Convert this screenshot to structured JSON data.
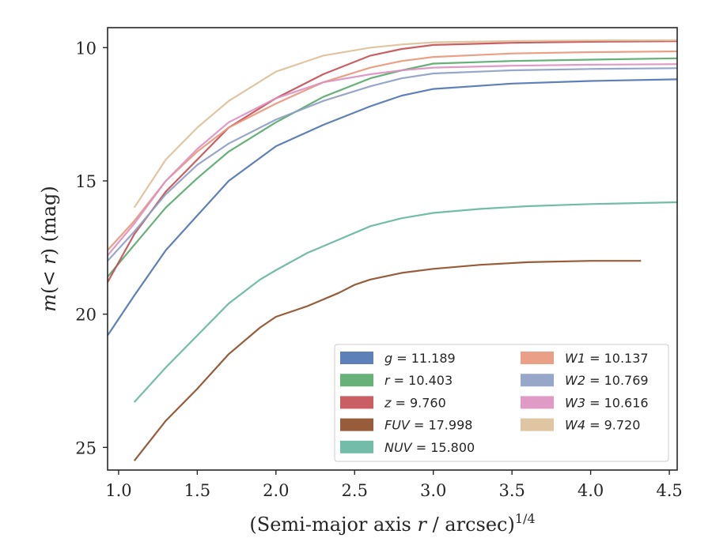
{
  "chart_data": {
    "type": "line",
    "title": "",
    "xlabel": "(Semi-major axis r / arcsec)",
    "xlabel_parts": {
      "pre": "(Semi-major axis ",
      "var": "r",
      "post": " / arcsec)",
      "exp": "1/4"
    },
    "ylabel": "m(< r) (mag)",
    "ylabel_parts": {
      "var": "m",
      "open": "(",
      "lt": "< ",
      "r": "r",
      "close": ") (mag)"
    },
    "xlim": [
      0.93,
      4.55
    ],
    "ylim": [
      25.85,
      9.25
    ],
    "y_inverted": true,
    "x_ticks": [
      "1.0",
      "1.5",
      "2.0",
      "2.5",
      "3.0",
      "3.5",
      "4.0",
      "4.5"
    ],
    "y_ticks": [
      "10",
      "15",
      "20",
      "25"
    ],
    "legend_position": "lower-right",
    "series": [
      {
        "label_var": "g",
        "label_val": "11.189",
        "color": "#4c72b0",
        "x": [
          0.93,
          1.1,
          1.3,
          1.5,
          1.7,
          2.0,
          2.3,
          2.6,
          2.8,
          3.0,
          3.5,
          4.0,
          4.55
        ],
        "y": [
          20.8,
          19.3,
          17.6,
          16.3,
          15.0,
          13.7,
          12.9,
          12.2,
          11.8,
          11.55,
          11.35,
          11.25,
          11.19
        ]
      },
      {
        "label_var": "r",
        "label_val": "10.403",
        "color": "#55a868",
        "x": [
          0.93,
          1.1,
          1.3,
          1.5,
          1.7,
          2.0,
          2.3,
          2.6,
          2.8,
          3.0,
          3.5,
          4.0,
          4.55
        ],
        "y": [
          18.6,
          17.4,
          16.0,
          14.9,
          13.9,
          12.8,
          11.85,
          11.15,
          10.85,
          10.6,
          10.5,
          10.45,
          10.4
        ]
      },
      {
        "label_var": "z",
        "label_val": "9.760",
        "color": "#c44e52",
        "x": [
          0.93,
          1.1,
          1.3,
          1.5,
          1.7,
          2.0,
          2.3,
          2.6,
          2.8,
          3.0,
          3.5,
          4.0,
          4.55
        ],
        "y": [
          18.8,
          17.0,
          15.4,
          14.2,
          13.0,
          11.9,
          11.0,
          10.3,
          10.05,
          9.9,
          9.82,
          9.78,
          9.76
        ]
      },
      {
        "label_var": "FUV",
        "label_val": "17.998",
        "color": "#8c4a25",
        "x": [
          1.1,
          1.3,
          1.5,
          1.7,
          1.9,
          2.0,
          2.2,
          2.4,
          2.5,
          2.6,
          2.8,
          3.0,
          3.3,
          3.6,
          4.0,
          4.32
        ],
        "y": [
          25.5,
          24.0,
          22.8,
          21.5,
          20.5,
          20.1,
          19.7,
          19.2,
          18.9,
          18.7,
          18.45,
          18.3,
          18.15,
          18.05,
          18.0,
          18.0
        ]
      },
      {
        "label_var": "NUV",
        "label_val": "15.800",
        "color": "#64b5a0",
        "x": [
          1.1,
          1.3,
          1.5,
          1.7,
          1.9,
          2.0,
          2.2,
          2.4,
          2.6,
          2.8,
          3.0,
          3.3,
          3.6,
          4.0,
          4.55
        ],
        "y": [
          23.3,
          22.0,
          20.8,
          19.6,
          18.7,
          18.35,
          17.7,
          17.2,
          16.7,
          16.4,
          16.2,
          16.05,
          15.95,
          15.87,
          15.8
        ]
      },
      {
        "label_var": "W1",
        "label_val": "10.137",
        "color": "#e8967a",
        "x": [
          0.93,
          1.1,
          1.3,
          1.5,
          1.7,
          2.0,
          2.3,
          2.6,
          2.8,
          3.0,
          3.5,
          4.0,
          4.55
        ],
        "y": [
          17.6,
          16.5,
          15.0,
          13.9,
          13.0,
          12.1,
          11.3,
          10.75,
          10.5,
          10.35,
          10.22,
          10.17,
          10.14
        ]
      },
      {
        "label_var": "W2",
        "label_val": "10.769",
        "color": "#8b9dc3",
        "x": [
          0.93,
          1.1,
          1.3,
          1.5,
          1.7,
          2.0,
          2.3,
          2.6,
          2.8,
          3.0,
          3.5,
          4.0,
          4.55
        ],
        "y": [
          18.0,
          16.9,
          15.5,
          14.4,
          13.6,
          12.7,
          12.0,
          11.45,
          11.15,
          10.97,
          10.85,
          10.8,
          10.77
        ]
      },
      {
        "label_var": "W3",
        "label_val": "10.616",
        "color": "#dd8fc0",
        "x": [
          0.93,
          1.1,
          1.3,
          1.5,
          1.7,
          2.0,
          2.3,
          2.6,
          2.8,
          3.0,
          3.5,
          4.0,
          4.55
        ],
        "y": [
          17.8,
          16.6,
          15.0,
          13.8,
          12.8,
          11.9,
          11.3,
          11.0,
          10.85,
          10.75,
          10.68,
          10.64,
          10.62
        ]
      },
      {
        "label_var": "W4",
        "label_val": "9.720",
        "color": "#ddbf98",
        "x": [
          1.1,
          1.3,
          1.5,
          1.7,
          2.0,
          2.3,
          2.6,
          2.8,
          3.0,
          3.5,
          4.0,
          4.55
        ],
        "y": [
          16.0,
          14.2,
          13.0,
          12.0,
          10.9,
          10.3,
          10.0,
          9.88,
          9.8,
          9.75,
          9.73,
          9.72
        ]
      }
    ],
    "legend_columns": [
      [
        "g",
        "r",
        "z",
        "FUV",
        "NUV"
      ],
      [
        "W1",
        "W2",
        "W3",
        "W4"
      ]
    ]
  }
}
